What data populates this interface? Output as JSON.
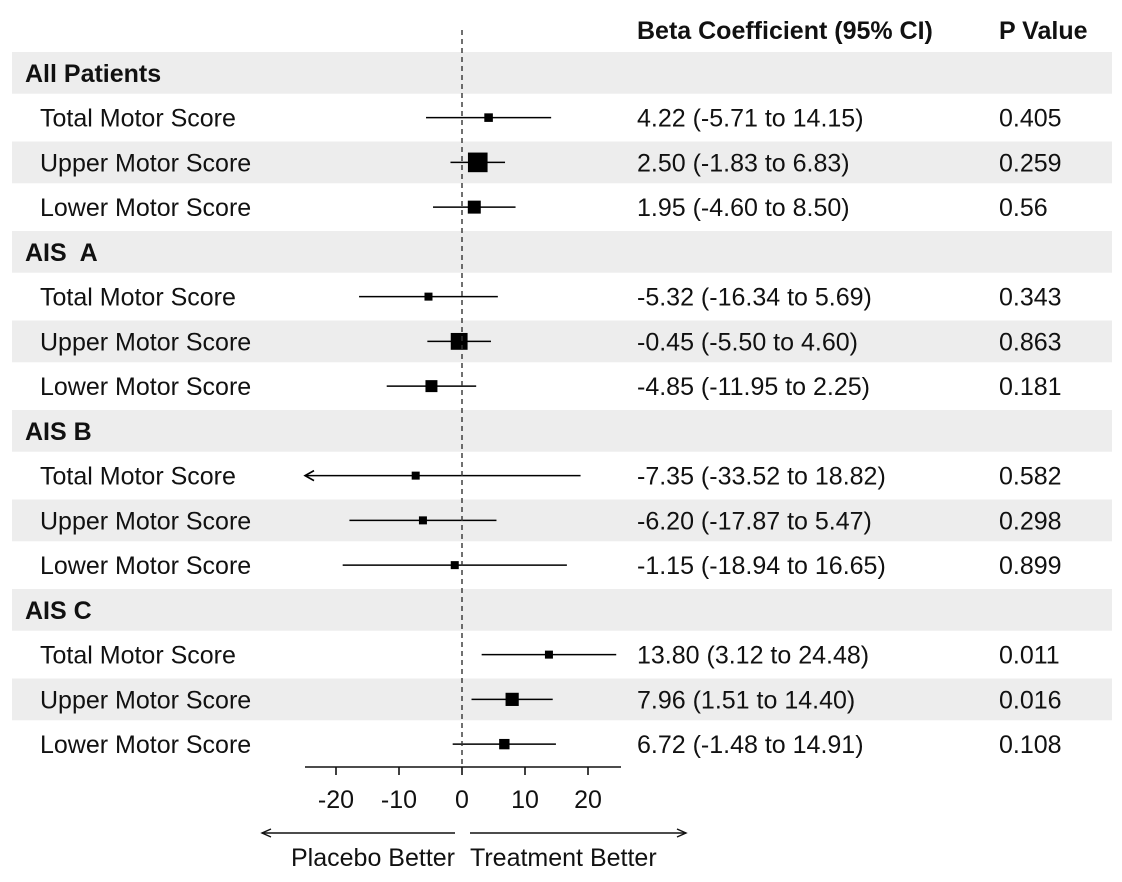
{
  "chart_data": {
    "type": "forest",
    "columns": {
      "estimate_header": "Beta Coefficient (95% CI)",
      "p_header": "P Value"
    },
    "groups": [
      {
        "label": "All Patients",
        "rows": [
          {
            "label": "Total Motor Score",
            "beta": 4.22,
            "lower": -5.71,
            "upper": 14.15,
            "ci_text": "4.22 (-5.71 to 14.15)",
            "p": "0.405"
          },
          {
            "label": "Upper Motor Score",
            "beta": 2.5,
            "lower": -1.83,
            "upper": 6.83,
            "ci_text": "2.50 (-1.83 to 6.83)",
            "p": "0.259"
          },
          {
            "label": "Lower Motor Score",
            "beta": 1.95,
            "lower": -4.6,
            "upper": 8.5,
            "ci_text": "1.95 (-4.60 to 8.50)",
            "p": "0.56"
          }
        ]
      },
      {
        "label": "AIS  A",
        "rows": [
          {
            "label": "Total Motor Score",
            "beta": -5.32,
            "lower": -16.34,
            "upper": 5.69,
            "ci_text": "-5.32 (-16.34 to 5.69)",
            "p": "0.343"
          },
          {
            "label": "Upper Motor Score",
            "beta": -0.45,
            "lower": -5.5,
            "upper": 4.6,
            "ci_text": "-0.45 (-5.50 to 4.60)",
            "p": "0.863"
          },
          {
            "label": "Lower Motor Score",
            "beta": -4.85,
            "lower": -11.95,
            "upper": 2.25,
            "ci_text": "-4.85 (-11.95 to 2.25)",
            "p": "0.181"
          }
        ]
      },
      {
        "label": "AIS B",
        "rows": [
          {
            "label": "Total Motor Score",
            "beta": -7.35,
            "lower": -33.52,
            "upper": 18.82,
            "ci_text": "-7.35 (-33.52 to 18.82)",
            "p": "0.582"
          },
          {
            "label": "Upper Motor Score",
            "beta": -6.2,
            "lower": -17.87,
            "upper": 5.47,
            "ci_text": "-6.20 (-17.87 to 5.47)",
            "p": "0.298"
          },
          {
            "label": "Lower Motor Score",
            "beta": -1.15,
            "lower": -18.94,
            "upper": 16.65,
            "ci_text": "-1.15 (-18.94 to 16.65)",
            "p": "0.899"
          }
        ]
      },
      {
        "label": "AIS C",
        "rows": [
          {
            "label": "Total Motor Score",
            "beta": 13.8,
            "lower": 3.12,
            "upper": 24.48,
            "ci_text": "13.80 (3.12 to 24.48)",
            "p": "0.011"
          },
          {
            "label": "Upper Motor Score",
            "beta": 7.96,
            "lower": 1.51,
            "upper": 14.4,
            "ci_text": "7.96 (1.51 to 14.40)",
            "p": "0.016"
          },
          {
            "label": "Lower Motor Score",
            "beta": 6.72,
            "lower": -1.48,
            "upper": 14.91,
            "ci_text": "6.72 (-1.48 to 14.91)",
            "p": "0.108"
          }
        ]
      }
    ],
    "x_axis": {
      "range": [
        -25,
        25
      ],
      "ticks": [
        -20,
        -10,
        0,
        10,
        20
      ],
      "reference_line": 0,
      "reference_style": "dashed"
    },
    "direction_labels": {
      "left": "Placebo Better",
      "right": "Treatment Better"
    },
    "colors": {
      "band": "#ededed",
      "marker": "#000000",
      "text": "#111111"
    }
  }
}
